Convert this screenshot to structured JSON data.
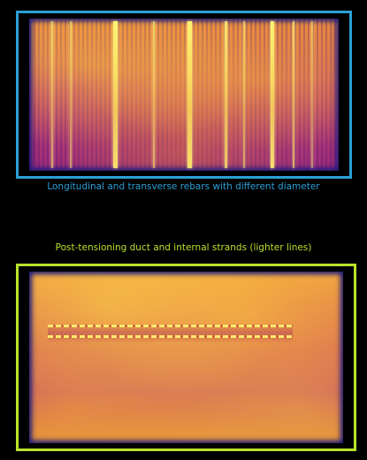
{
  "figure": {
    "top_panel": {
      "caption": "Longitudinal and transverse rebars with different diameter",
      "border_color": "#2a9fd6"
    },
    "bottom_panel": {
      "caption": "Post-tensioning duct and internal strands (lighter lines)",
      "border_color": "#b9e22b"
    },
    "colormap": [
      "#1a1a7a",
      "#9a2a7a",
      "#d05a58",
      "#f0a040",
      "#ffff80"
    ]
  }
}
